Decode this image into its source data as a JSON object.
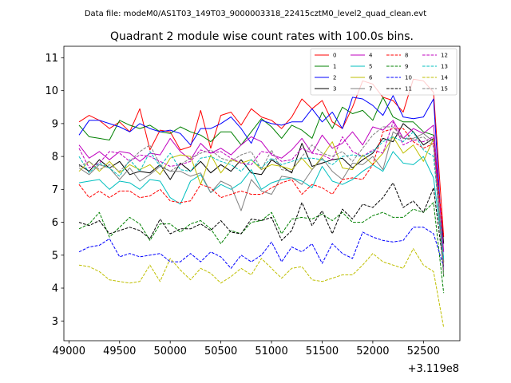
{
  "chart_data": {
    "type": "line",
    "suptitle": "Data file: modeM0/AS1T03_149T03_9000003318_22415cztM0_level2_quad_clean.evt",
    "title": "Quadrant 2 module wise count rates with 100.0s bins.",
    "xlabel": "",
    "ylabel": "",
    "x_offset_label": "+3.119e8",
    "xlim": [
      48950,
      52860
    ],
    "ylim": [
      2.4,
      11.35
    ],
    "x_ticks": [
      49000,
      49500,
      50000,
      50500,
      51000,
      51500,
      52000,
      52500
    ],
    "y_ticks": [
      3,
      4,
      5,
      6,
      7,
      8,
      9,
      10,
      11
    ],
    "legend_loc": "upper right",
    "x": [
      49100,
      49200,
      49300,
      49400,
      49500,
      49600,
      49700,
      49800,
      49900,
      50000,
      50100,
      50200,
      50300,
      50400,
      50500,
      50600,
      50700,
      50800,
      50900,
      51000,
      51100,
      51200,
      51300,
      51400,
      51500,
      51600,
      51700,
      51800,
      51900,
      52000,
      52100,
      52200,
      52300,
      52400,
      52500,
      52600,
      52700
    ],
    "series": [
      {
        "name": "0",
        "color": "#ff0000",
        "dash": "solid",
        "values": [
          9.05,
          9.25,
          9.1,
          8.85,
          9.05,
          8.75,
          9.45,
          8.2,
          8.8,
          8.75,
          8.2,
          8.3,
          9.4,
          8.25,
          9.25,
          9.35,
          8.95,
          9.45,
          9.2,
          9.1,
          8.85,
          9.2,
          9.75,
          9.45,
          9.7,
          9.05,
          8.85,
          9.5,
          10.3,
          10.2,
          9.8,
          9.7,
          9.35,
          10.35,
          10.3,
          9.95,
          5.55
        ]
      },
      {
        "name": "1",
        "color": "#008000",
        "dash": "solid",
        "values": [
          8.95,
          8.6,
          8.55,
          8.5,
          9.1,
          8.95,
          8.85,
          8.95,
          8.75,
          8.7,
          8.9,
          8.75,
          8.65,
          8.45,
          8.75,
          8.75,
          8.35,
          8.75,
          9.15,
          8.9,
          8.55,
          8.95,
          8.8,
          8.55,
          9.35,
          8.85,
          9.5,
          9.3,
          9.4,
          9.1,
          9.8,
          9.2,
          9.05,
          9.05,
          8.75,
          8.65,
          4.35
        ]
      },
      {
        "name": "2",
        "color": "#0000ff",
        "dash": "solid",
        "values": [
          8.65,
          9.1,
          9.1,
          9.0,
          8.9,
          8.75,
          9.0,
          8.85,
          8.75,
          8.8,
          8.7,
          8.35,
          8.85,
          8.85,
          9.0,
          9.2,
          8.85,
          8.4,
          9.1,
          9.0,
          8.95,
          9.05,
          9.05,
          9.45,
          9.05,
          9.35,
          8.85,
          9.8,
          9.75,
          9.55,
          9.25,
          9.85,
          9.2,
          9.15,
          9.2,
          9.75,
          4.8
        ]
      },
      {
        "name": "3",
        "color": "#000000",
        "dash": "solid",
        "values": [
          7.75,
          7.55,
          7.9,
          7.65,
          7.85,
          7.45,
          7.55,
          7.5,
          7.75,
          7.3,
          7.8,
          7.55,
          7.85,
          7.5,
          7.75,
          7.55,
          7.9,
          7.5,
          7.45,
          7.9,
          7.7,
          7.5,
          8.4,
          7.7,
          7.8,
          7.9,
          7.95,
          7.65,
          7.9,
          8.1,
          8.55,
          8.45,
          9.0,
          8.75,
          8.35,
          8.55,
          5.35
        ]
      },
      {
        "name": "4",
        "color": "#bf00bf",
        "dash": "solid",
        "values": [
          8.35,
          7.95,
          8.15,
          7.9,
          8.15,
          8.1,
          7.85,
          8.1,
          8.05,
          8.55,
          8.15,
          7.9,
          8.4,
          8.1,
          8.25,
          8.05,
          8.35,
          8.6,
          8.45,
          8.05,
          7.95,
          8.2,
          8.55,
          8.1,
          8.65,
          8.25,
          8.4,
          8.75,
          8.35,
          8.9,
          8.8,
          9.1,
          8.55,
          8.85,
          8.7,
          8.95,
          5.1
        ]
      },
      {
        "name": "5",
        "color": "#00bfbf",
        "dash": "solid",
        "values": [
          7.2,
          7.25,
          7.3,
          7.0,
          7.25,
          7.2,
          7.0,
          7.3,
          7.25,
          6.75,
          6.55,
          7.25,
          7.45,
          6.9,
          7.15,
          7.0,
          7.2,
          7.6,
          7.0,
          7.2,
          7.3,
          7.35,
          7.25,
          7.05,
          7.7,
          7.25,
          7.15,
          7.3,
          7.55,
          7.75,
          7.55,
          8.15,
          7.8,
          7.75,
          8.0,
          7.35,
          4.9
        ]
      },
      {
        "name": "6",
        "color": "#bfbf00",
        "dash": "solid",
        "values": [
          7.55,
          7.85,
          7.55,
          7.85,
          7.5,
          7.75,
          7.6,
          7.75,
          7.45,
          7.95,
          8.05,
          8.0,
          7.15,
          8.05,
          7.5,
          7.9,
          7.8,
          7.9,
          7.6,
          7.75,
          7.7,
          7.6,
          7.95,
          7.6,
          8.0,
          8.45,
          7.65,
          7.6,
          8.05,
          7.75,
          8.1,
          8.6,
          8.1,
          8.35,
          7.85,
          8.55,
          4.75
        ]
      },
      {
        "name": "7",
        "color": "#808080",
        "dash": "solid",
        "values": [
          7.65,
          7.45,
          7.75,
          7.65,
          7.3,
          7.65,
          7.25,
          7.45,
          7.7,
          7.55,
          7.55,
          7.4,
          7.5,
          6.9,
          7.25,
          7.1,
          6.35,
          7.3,
          6.95,
          6.85,
          7.4,
          7.35,
          7.15,
          7.6,
          7.95,
          7.55,
          7.3,
          7.8,
          7.75,
          8.0,
          7.6,
          8.75,
          8.55,
          8.55,
          8.7,
          8.45,
          4.65
        ]
      },
      {
        "name": "8",
        "color": "#ff0000",
        "dash": "dashed",
        "values": [
          7.15,
          6.75,
          6.95,
          6.75,
          6.95,
          6.95,
          6.75,
          6.8,
          7.0,
          6.65,
          6.6,
          6.65,
          7.15,
          7.05,
          6.75,
          6.85,
          6.95,
          6.85,
          6.85,
          7.05,
          7.2,
          7.3,
          6.85,
          7.15,
          7.05,
          6.85,
          7.3,
          7.35,
          7.3,
          7.75,
          8.75,
          8.85,
          8.85,
          8.45,
          8.25,
          8.4,
          5.6
        ]
      },
      {
        "name": "9",
        "color": "#008000",
        "dash": "dashed",
        "values": [
          5.8,
          5.95,
          6.3,
          5.55,
          5.85,
          6.15,
          5.95,
          5.45,
          5.95,
          5.95,
          5.7,
          5.95,
          6.05,
          5.8,
          5.35,
          5.75,
          5.65,
          6.0,
          6.05,
          6.3,
          5.65,
          6.1,
          6.15,
          6.1,
          6.25,
          6.05,
          6.3,
          6.0,
          6.0,
          6.2,
          6.3,
          6.15,
          6.15,
          6.4,
          6.3,
          6.6,
          3.85
        ]
      },
      {
        "name": "10",
        "color": "#0000ff",
        "dash": "dashed",
        "values": [
          5.1,
          5.25,
          5.3,
          5.5,
          4.95,
          5.05,
          4.95,
          5.0,
          5.05,
          4.8,
          4.8,
          5.05,
          4.8,
          5.1,
          4.95,
          4.6,
          5.0,
          4.8,
          5.0,
          5.4,
          4.8,
          5.25,
          5.1,
          5.35,
          4.75,
          5.35,
          5.05,
          4.9,
          5.7,
          5.55,
          5.45,
          5.4,
          5.45,
          5.85,
          5.85,
          5.65,
          4.65
        ]
      },
      {
        "name": "11",
        "color": "#000000",
        "dash": "dashed",
        "values": [
          6.0,
          5.9,
          6.05,
          5.65,
          5.75,
          5.85,
          5.75,
          5.5,
          6.1,
          5.65,
          5.8,
          5.8,
          5.95,
          5.75,
          6.05,
          5.7,
          5.65,
          6.1,
          6.05,
          6.15,
          5.45,
          5.75,
          6.6,
          5.9,
          6.35,
          5.65,
          6.4,
          6.1,
          6.55,
          6.45,
          6.75,
          7.2,
          6.45,
          6.65,
          6.3,
          7.05,
          4.6
        ]
      },
      {
        "name": "12",
        "color": "#bf00bf",
        "dash": "dashed",
        "values": [
          8.25,
          7.65,
          7.8,
          8.15,
          8.1,
          7.85,
          8.05,
          8.0,
          7.85,
          7.7,
          7.75,
          7.85,
          8.2,
          8.1,
          8.15,
          7.95,
          7.8,
          7.75,
          8.15,
          8.1,
          7.85,
          7.9,
          8.25,
          8.1,
          8.05,
          7.9,
          8.6,
          8.15,
          8.0,
          8.2,
          8.1,
          9.05,
          8.35,
          8.5,
          8.45,
          8.6,
          4.5
        ]
      },
      {
        "name": "13",
        "color": "#00bfbf",
        "dash": "dashed",
        "values": [
          8.0,
          7.5,
          7.8,
          7.65,
          7.4,
          7.9,
          7.55,
          8.15,
          7.7,
          8.1,
          7.6,
          7.55,
          7.95,
          8.0,
          7.85,
          7.75,
          7.55,
          7.9,
          7.65,
          7.95,
          7.75,
          7.85,
          7.95,
          7.95,
          7.9,
          7.75,
          8.0,
          8.05,
          8.0,
          8.15,
          8.45,
          8.6,
          8.45,
          8.75,
          8.2,
          8.0,
          4.85
        ]
      },
      {
        "name": "14",
        "color": "#bfbf00",
        "dash": "dashed",
        "values": [
          4.7,
          4.65,
          4.5,
          4.25,
          4.2,
          4.15,
          4.2,
          4.7,
          4.2,
          4.9,
          4.55,
          4.25,
          4.6,
          4.45,
          4.15,
          4.35,
          4.6,
          4.4,
          4.9,
          4.6,
          4.3,
          4.6,
          4.65,
          4.25,
          4.2,
          4.3,
          4.4,
          4.4,
          4.7,
          5.05,
          4.8,
          4.7,
          4.6,
          5.2,
          4.7,
          4.5,
          2.8
        ]
      },
      {
        "name": "15",
        "color": "#808080",
        "dash": "dashed",
        "values": [
          7.7,
          7.85,
          7.6,
          7.75,
          7.55,
          7.85,
          8.15,
          8.35,
          7.75,
          7.55,
          7.75,
          7.95,
          8.1,
          8.2,
          7.95,
          7.85,
          8.05,
          8.15,
          7.6,
          8.2,
          7.6,
          7.55,
          8.0,
          8.35,
          8.1,
          8.0,
          8.15,
          7.85,
          8.25,
          8.65,
          8.9,
          8.9,
          8.55,
          8.5,
          8.6,
          8.3,
          4.4
        ]
      }
    ]
  }
}
